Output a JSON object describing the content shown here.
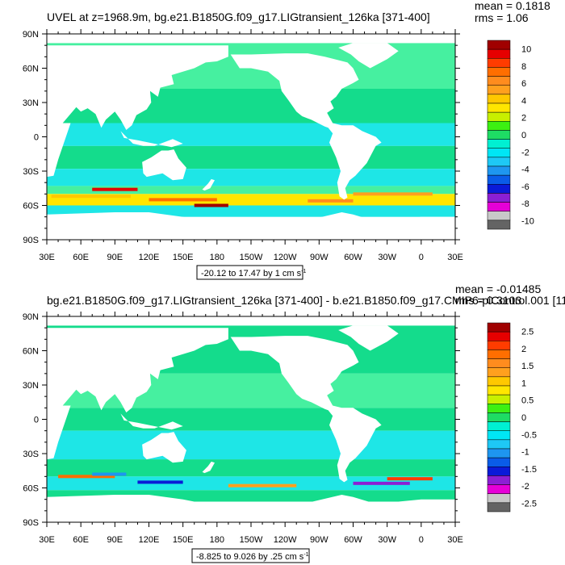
{
  "panels": [
    {
      "title": "UVEL at z=1968.9m, bg.e21.B1850G.f09_g17.LIGtransient_126ka [371-400]",
      "stats": {
        "mean": "mean = 0.1818",
        "rms": "rms = 1.06"
      },
      "range_label": "-20.12 to 17.47 by 1 cm s",
      "range_unit_sup": "-1",
      "lat_ticks": [
        "90N",
        "60N",
        "30N",
        "0",
        "30S",
        "60S",
        "90S"
      ],
      "lon_ticks": [
        "30E",
        "60E",
        "90E",
        "120E",
        "150E",
        "180",
        "150W",
        "120W",
        "90W",
        "60W",
        "30W",
        "0",
        "30E"
      ],
      "colorbar_labels": [
        "10",
        "8",
        "6",
        "4",
        "2",
        "0",
        "-2",
        "-4",
        "-6",
        "-8",
        "-10"
      ]
    },
    {
      "title": "bg.e21.B1850G.f09_g17.LIGtransient_126ka [371-400] - b.e21.B1850.f09_g17.CMIP6-piControl.001 [11",
      "stats": {
        "mean": "mean = -0.01485",
        "rms": "rms = 0.3103"
      },
      "range_label": "-8.825 to 9.026 by .25 cm s",
      "range_unit_sup": "-1",
      "lat_ticks": [
        "90N",
        "60N",
        "30N",
        "0",
        "30S",
        "60S",
        "90S"
      ],
      "lon_ticks": [
        "30E",
        "60E",
        "90E",
        "120E",
        "150E",
        "180",
        "150W",
        "120W",
        "90W",
        "60W",
        "30W",
        "0",
        "30E"
      ],
      "colorbar_labels": [
        "2.5",
        "2",
        "1.5",
        "1",
        "0.5",
        "0",
        "-0.5",
        "-1",
        "-1.5",
        "-2",
        "-2.5"
      ]
    }
  ],
  "colors": {
    "scale": [
      "#646464",
      "#c8c8c8",
      "#e600d7",
      "#8c1fd4",
      "#0a1ad8",
      "#0a5ce8",
      "#1e96f0",
      "#1ec8f5",
      "#00e6f5",
      "#00f0d2",
      "#1edc64",
      "#3cf012",
      "#c8f000",
      "#ffe600",
      "#ffc800",
      "#ffa01e",
      "#ff8c1e",
      "#ff6e00",
      "#ff3c00",
      "#e60000",
      "#a00000"
    ],
    "ocean_main": "#14dc8c",
    "ocean_cyan": "#1ee6e6",
    "ocean_light": "#46f0a0"
  }
}
